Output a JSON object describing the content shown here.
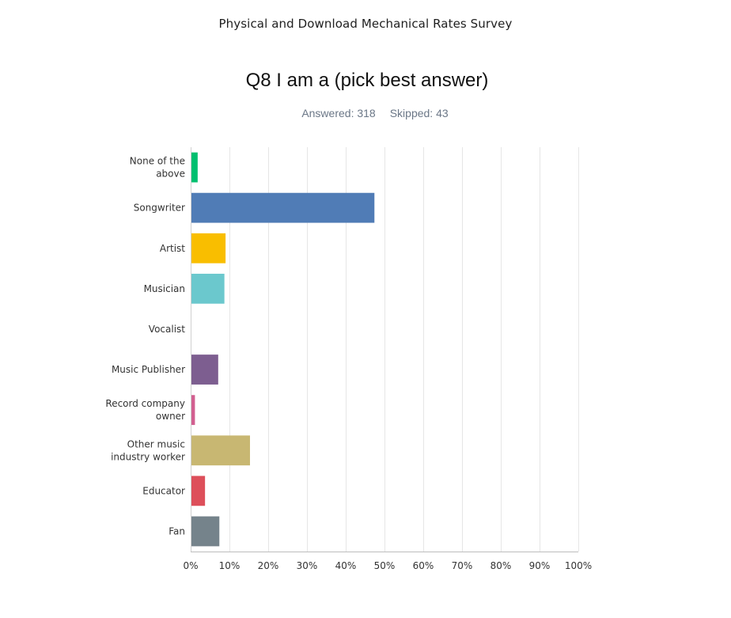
{
  "survey_title": "Physical and Download Mechanical Rates Survey",
  "question": {
    "title": "Q8 I am a (pick best answer)",
    "answered_label": "Answered: 318",
    "skipped_label": "Skipped: 43"
  },
  "chart_data": {
    "type": "bar",
    "orientation": "horizontal",
    "title": "Q8 I am a (pick best answer)",
    "categories": [
      "None of the above",
      "Songwriter",
      "Artist",
      "Musician",
      "Vocalist",
      "Music Publisher",
      "Record company owner",
      "Other music industry worker",
      "Educator",
      "Fan"
    ],
    "category_label_lines": [
      [
        "None of the",
        "above"
      ],
      [
        "Songwriter"
      ],
      [
        "Artist"
      ],
      [
        "Musician"
      ],
      [
        "Vocalist"
      ],
      [
        "Music Publisher"
      ],
      [
        "Record company",
        "owner"
      ],
      [
        "Other music",
        "industry worker"
      ],
      [
        "Educator"
      ],
      [
        "Fan"
      ]
    ],
    "values": [
      1.6,
      47.2,
      8.8,
      8.5,
      0,
      6.9,
      0.9,
      15.1,
      3.5,
      7.2
    ],
    "colors": [
      "#00bf6f",
      "#507cb6",
      "#f9be00",
      "#6bc8cd",
      "#ffffff",
      "#7d5e90",
      "#d25f90",
      "#c8b772",
      "#dd4f5a",
      "#75838b"
    ],
    "xlim": [
      0,
      100
    ],
    "x_ticks": [
      0,
      10,
      20,
      30,
      40,
      50,
      60,
      70,
      80,
      90,
      100
    ],
    "x_tick_labels": [
      "0%",
      "10%",
      "20%",
      "30%",
      "40%",
      "50%",
      "60%",
      "70%",
      "80%",
      "90%",
      "100%"
    ],
    "grid": true
  }
}
